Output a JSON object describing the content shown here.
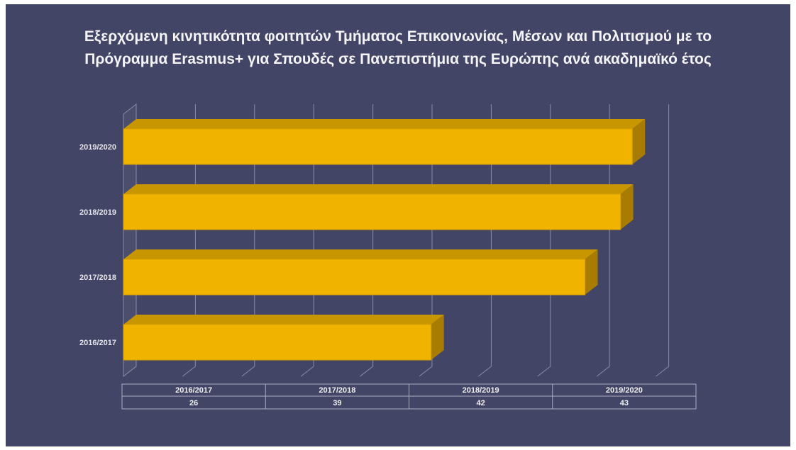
{
  "title_lines": [
    "Εξερχόμενη κινητικότητα φοιτητών Τμήματος Επικοινωνίας, Μέσων και Πολιτισμού με το",
    "Πρόγραμμα Erasmus+ για Σπουδές σε Πανεπιστήμια της Ευρώπης ανά ακαδημαϊκό έτος"
  ],
  "colors": {
    "background": "#434566",
    "bar_front": "#f0b400",
    "bar_top": "#c89600",
    "bar_side": "#a87c00",
    "grid": "#8a8ca6",
    "table_border": "#a9abc2"
  },
  "chart_data": {
    "type": "bar",
    "orientation": "horizontal",
    "three_d": true,
    "title": "Εξερχόμενη κινητικότητα φοιτητών Τμήματος Επικοινωνίας, Μέσων και Πολιτισμού με το Πρόγραμμα Erasmus+ για Σπουδές σε Πανεπιστήμια της Ευρώπης ανά ακαδημαϊκό έτος",
    "categories": [
      "2016/2017",
      "2017/2018",
      "2018/2019",
      "2019/2020"
    ],
    "values": [
      26,
      39,
      42,
      43
    ],
    "xlim": [
      0,
      45
    ],
    "grid": true,
    "legend": "none",
    "data_table": {
      "headers": [
        "2016/2017",
        "2017/2018",
        "2018/2019",
        "2019/2020"
      ],
      "values": [
        "26",
        "39",
        "42",
        "43"
      ]
    }
  }
}
